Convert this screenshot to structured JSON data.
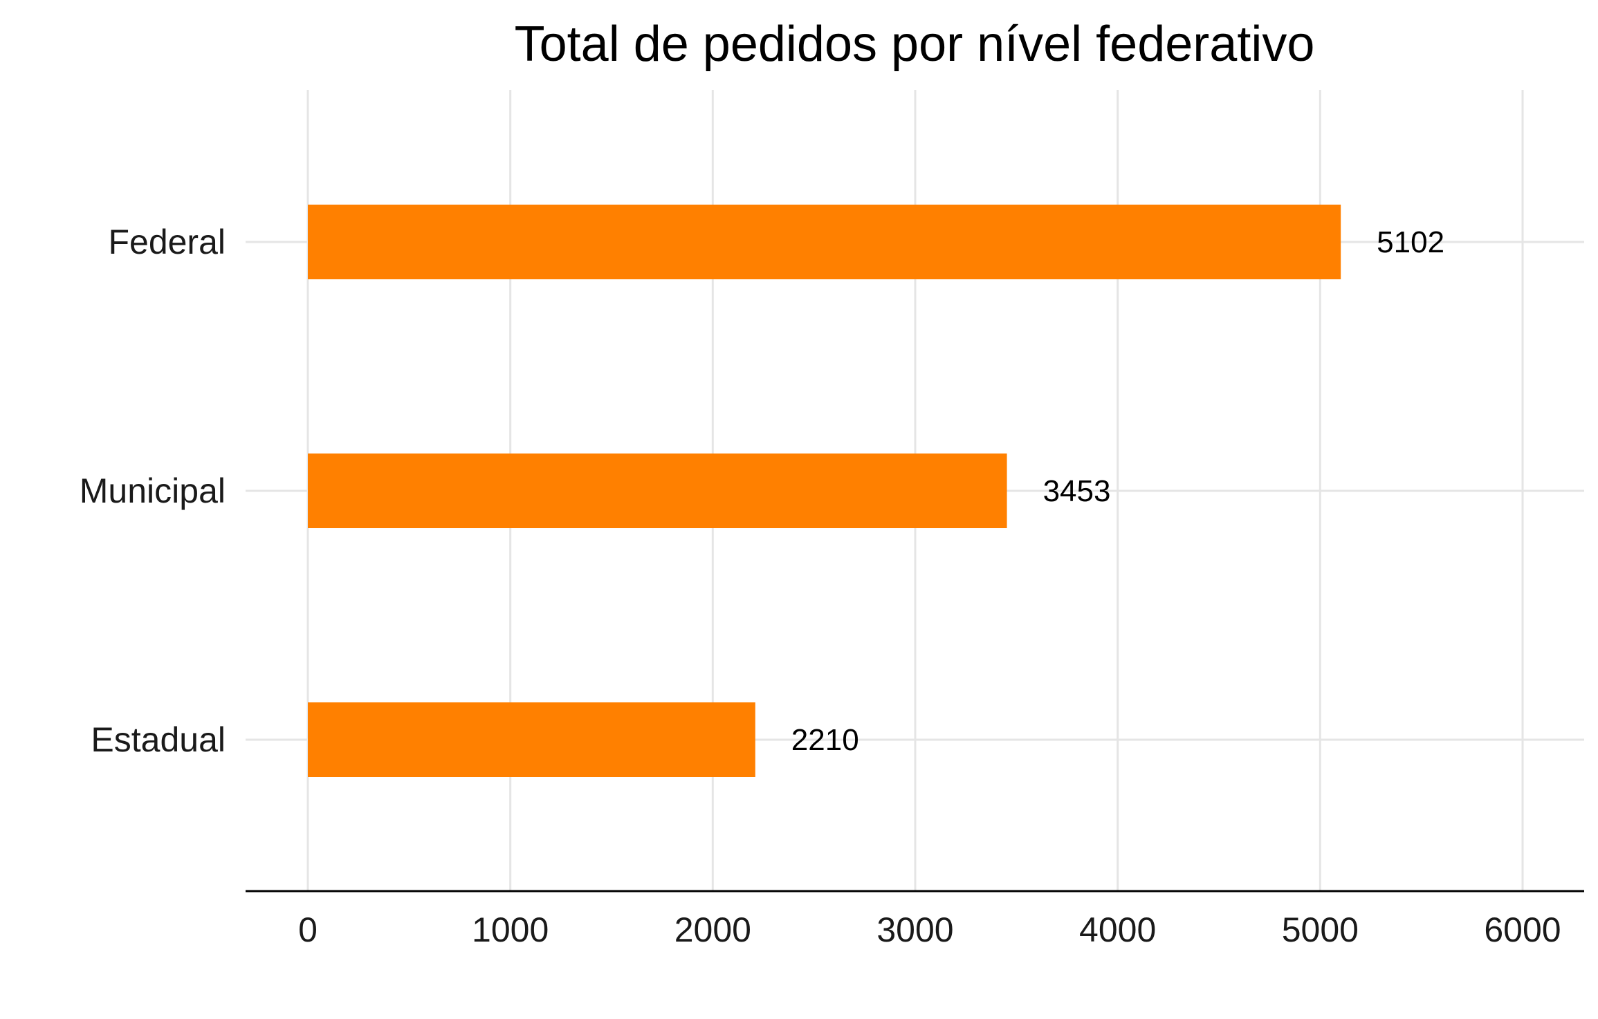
{
  "chart_data": {
    "type": "bar",
    "orientation": "horizontal",
    "title": "Total de pedidos por nível federativo",
    "xlabel": "",
    "ylabel": "",
    "categories": [
      "Federal",
      "Municipal",
      "Estadual"
    ],
    "values": [
      5102,
      3453,
      2210
    ],
    "data_labels": [
      "5102",
      "3453",
      "2210"
    ],
    "x_ticks": [
      0,
      1000,
      2000,
      3000,
      4000,
      5000,
      6000
    ],
    "x_tick_labels": [
      "0",
      "1000",
      "2000",
      "3000",
      "4000",
      "5000",
      "6000"
    ],
    "xlim": [
      0,
      6000
    ],
    "grid": true,
    "legend": "none",
    "bar_color": "#FF8000"
  }
}
